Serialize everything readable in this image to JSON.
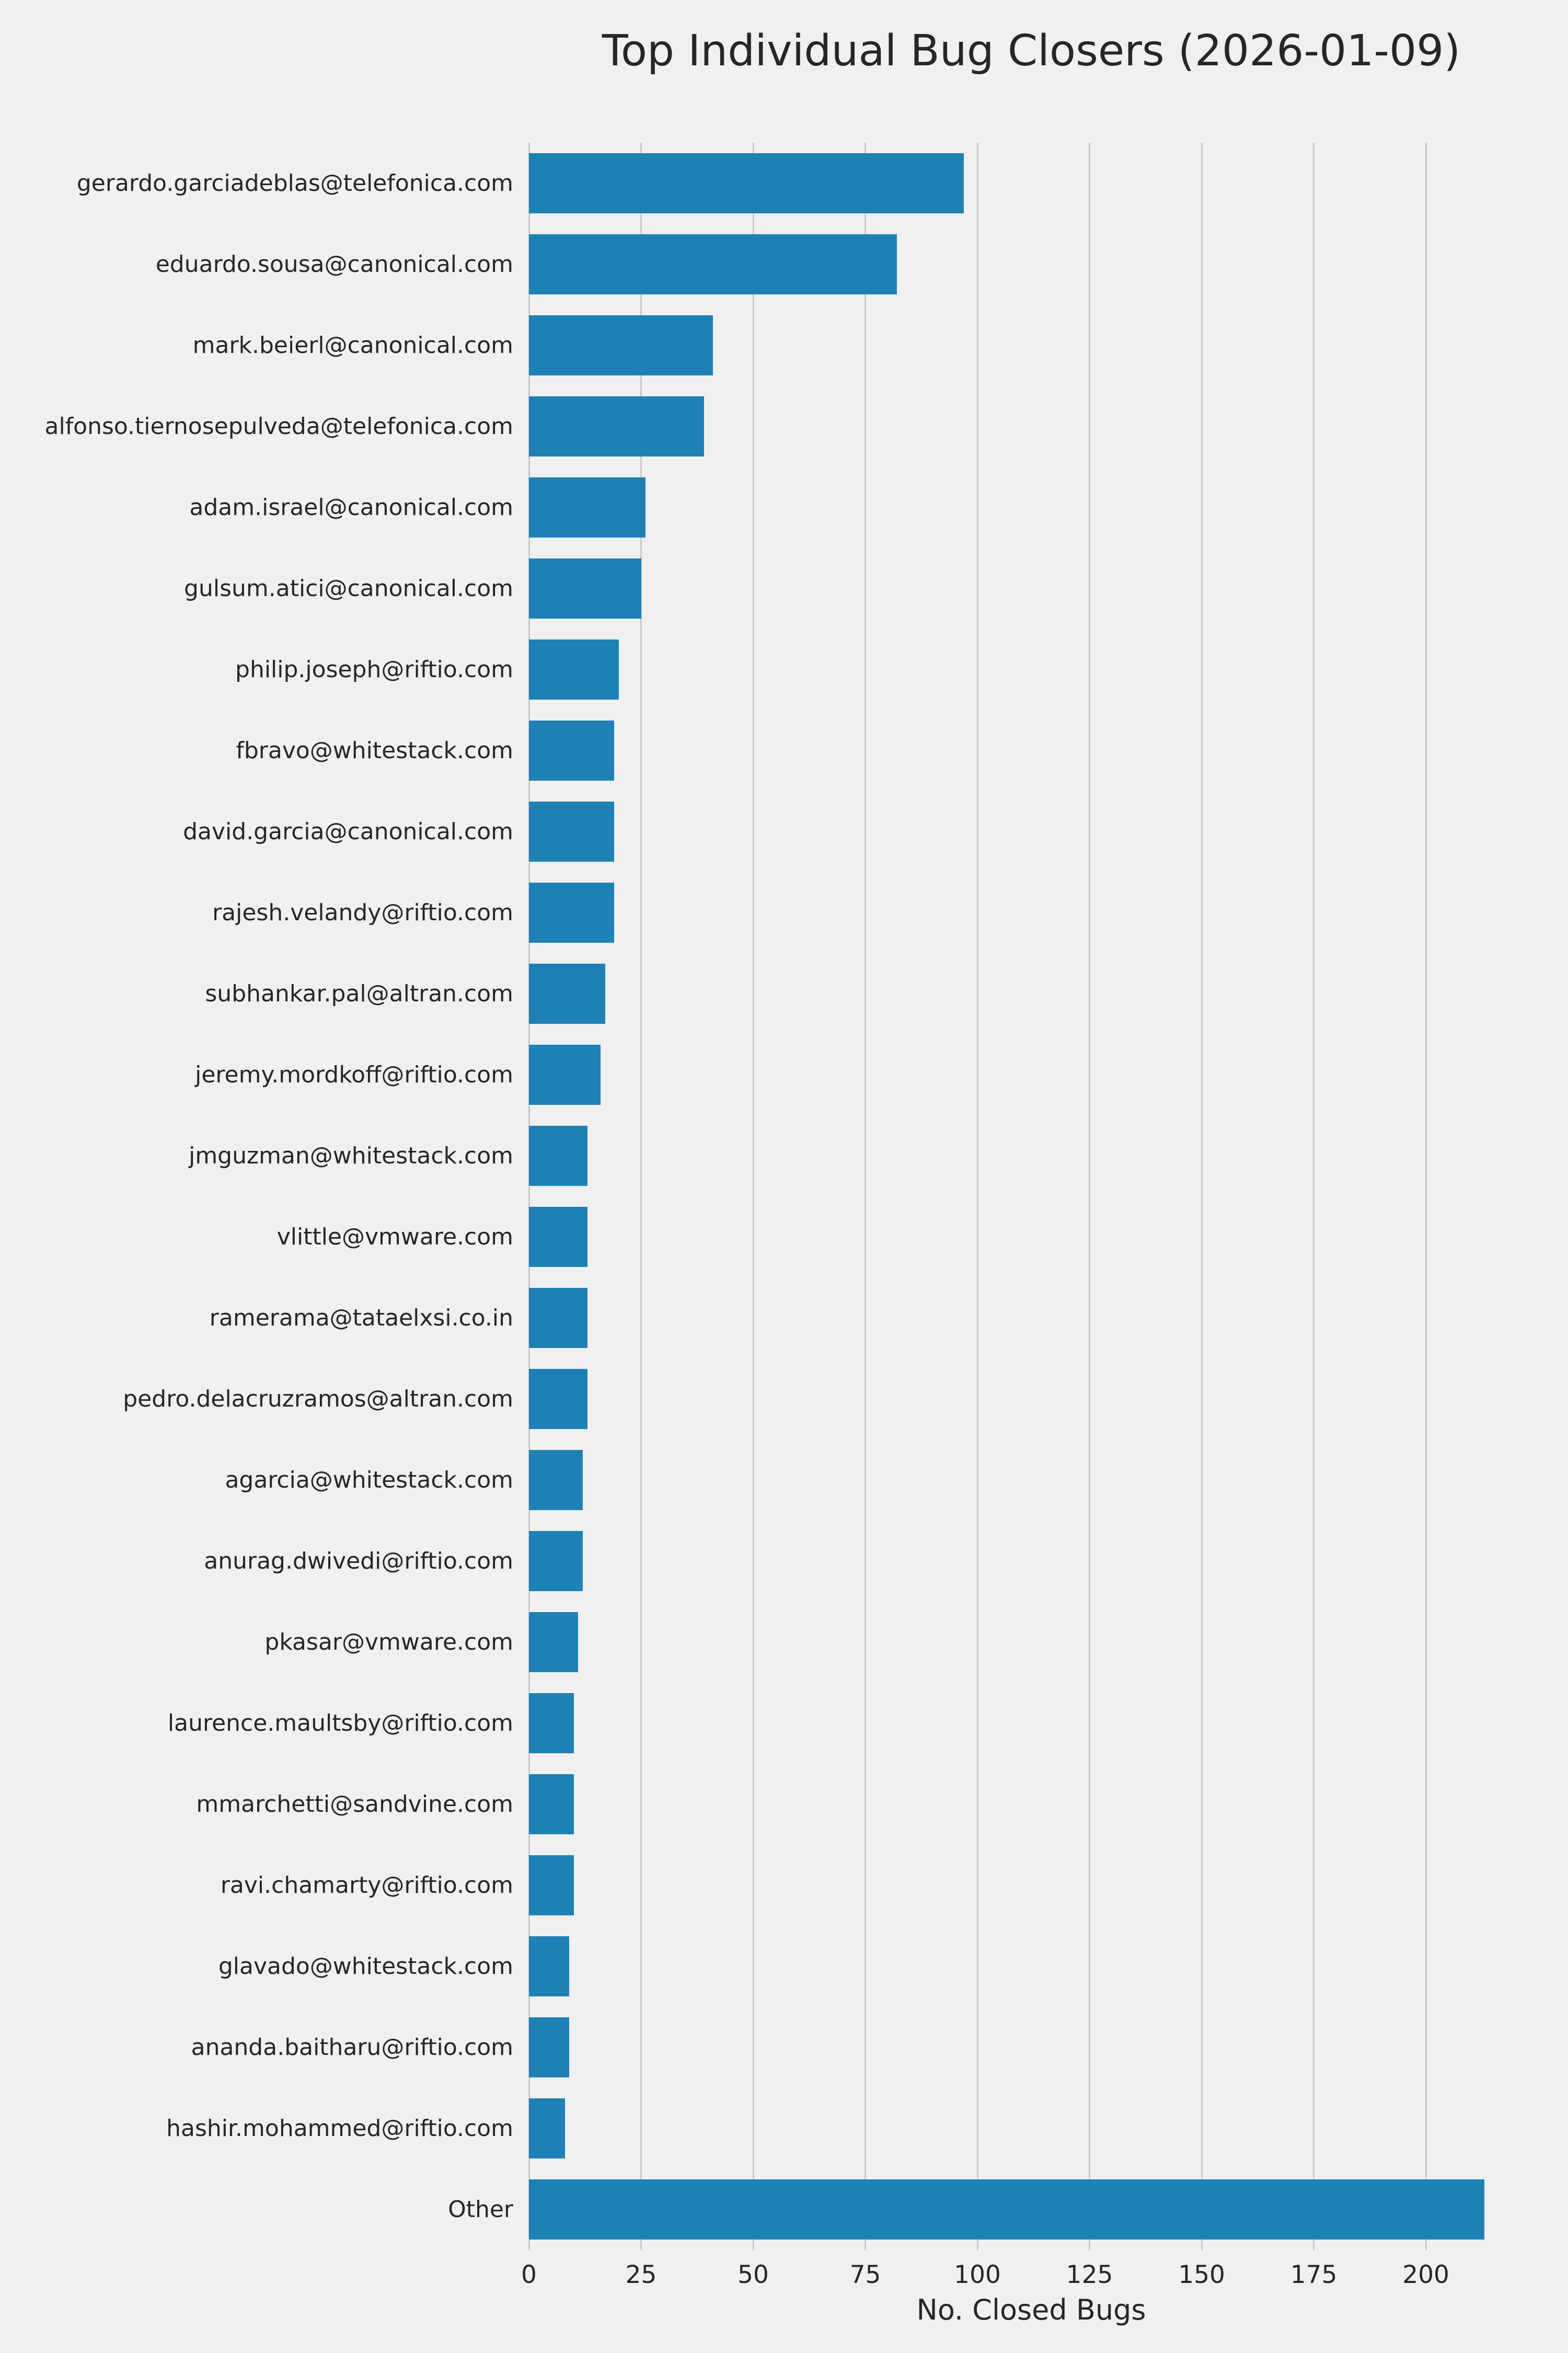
{
  "title": "Top Individual Bug Closers (2026-01-09)",
  "chart_data": {
    "type": "bar",
    "orientation": "horizontal",
    "title": "Top Individual Bug Closers (2026-01-09)",
    "xlabel": "No. Closed Bugs",
    "ylabel": "",
    "xlim": [
      0,
      224
    ],
    "x_ticks": [
      0,
      25,
      50,
      75,
      100,
      125,
      150,
      175,
      200
    ],
    "grid": true,
    "legend": false,
    "bar_color": "#1e81b5",
    "background_color": "#f0f0f0",
    "gridline_color": "#c9c9c9",
    "categories": [
      "gerardo.garciadeblas@telefonica.com",
      "eduardo.sousa@canonical.com",
      "mark.beierl@canonical.com",
      "alfonso.tiernosepulveda@telefonica.com",
      "adam.israel@canonical.com",
      "gulsum.atici@canonical.com",
      "philip.joseph@riftio.com",
      "fbravo@whitestack.com",
      "david.garcia@canonical.com",
      "rajesh.velandy@riftio.com",
      "subhankar.pal@altran.com",
      "jeremy.mordkoff@riftio.com",
      "jmguzman@whitestack.com",
      "vlittle@vmware.com",
      "ramerama@tataelxsi.co.in",
      "pedro.delacruzramos@altran.com",
      "agarcia@whitestack.com",
      "anurag.dwivedi@riftio.com",
      "pkasar@vmware.com",
      "laurence.maultsby@riftio.com",
      "mmarchetti@sandvine.com",
      "ravi.chamarty@riftio.com",
      "glavado@whitestack.com",
      "ananda.baitharu@riftio.com",
      "hashir.mohammed@riftio.com",
      "Other"
    ],
    "values": [
      97,
      82,
      41,
      39,
      26,
      25,
      20,
      19,
      19,
      19,
      17,
      16,
      13,
      13,
      13,
      13,
      12,
      12,
      11,
      10,
      10,
      10,
      9,
      9,
      8,
      213
    ]
  }
}
